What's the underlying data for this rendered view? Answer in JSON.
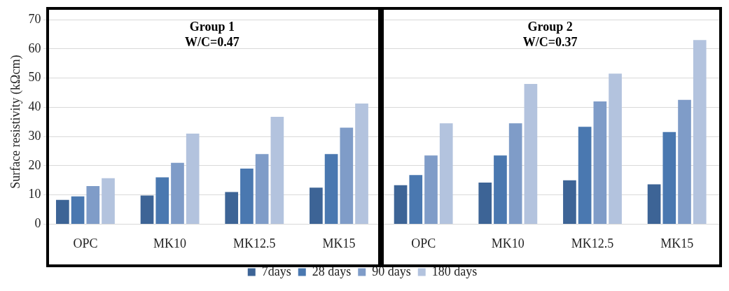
{
  "chart_data": {
    "type": "bar",
    "ylabel": "Surface resistivity (kΩcm)",
    "categories": [
      "OPC",
      "MK10",
      "MK12.5",
      "MK15",
      "OPC",
      "MK10",
      "MK12.5",
      "MK15"
    ],
    "series": [
      {
        "name": "7days",
        "color": "#3d6496",
        "values": [
          8.3,
          9.8,
          11,
          12.5,
          13.3,
          14.2,
          15,
          13.6
        ]
      },
      {
        "name": "28 days",
        "color": "#4a78b0",
        "values": [
          9.5,
          16,
          19,
          24,
          16.8,
          23.5,
          33.3,
          31.5
        ]
      },
      {
        "name": "90 days",
        "color": "#7f9cc8",
        "values": [
          13,
          21,
          24,
          33,
          23.5,
          34.5,
          42,
          42.5
        ]
      },
      {
        "name": "180 days",
        "color": "#b3c3de",
        "values": [
          15.7,
          31,
          36.7,
          41.3,
          34.5,
          48,
          51.5,
          63
        ]
      }
    ],
    "ylim": [
      0,
      70
    ],
    "yticks": [
      0,
      10,
      20,
      30,
      40,
      50,
      60,
      70
    ],
    "grid": "y",
    "legend": "bottom",
    "annotations": [
      "Group 1\nW/C=0.47",
      "Group 2\nW/C=0.37"
    ]
  }
}
